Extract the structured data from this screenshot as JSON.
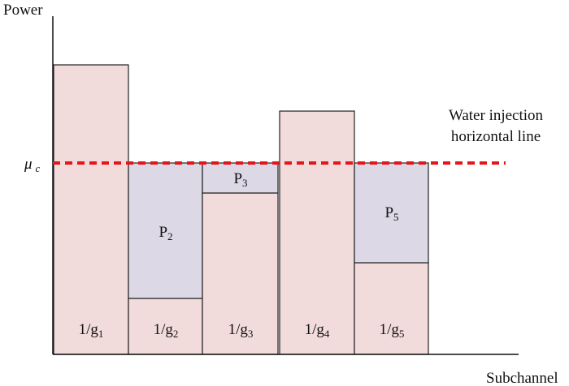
{
  "axes": {
    "y_label": "Power",
    "x_label": "Subchannel"
  },
  "level": {
    "symbol": "μ",
    "subscript": "c"
  },
  "annotation": [
    "Water injection",
    "horizontal line"
  ],
  "bars": [
    {
      "base": "1/g",
      "sub": "1"
    },
    {
      "base": "1/g",
      "sub": "2"
    },
    {
      "base": "1/g",
      "sub": "3"
    },
    {
      "base": "1/g",
      "sub": "4"
    },
    {
      "base": "1/g",
      "sub": "5"
    }
  ],
  "powers": [
    {
      "base": "P",
      "sub": "2"
    },
    {
      "base": "P",
      "sub": "3"
    },
    {
      "base": "P",
      "sub": "5"
    }
  ]
}
